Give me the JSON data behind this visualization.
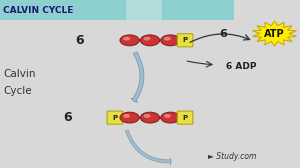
{
  "title": "CALVIN CYCLE",
  "title_bar_color": "#8ecfcf",
  "title_text_color": "#1a1a6e",
  "bg_color": "#d8d8d8",
  "ball_color": "#cc3333",
  "ball_edge_color": "#882222",
  "p_box_color": "#e8e040",
  "atp_color": "#ffee00",
  "atp_edge_color": "#ccaa00",
  "atp_text": "ATP",
  "adp_text": "6 ADP",
  "arrow_color": "#a0bece",
  "arrow_edge_color": "#7090ae",
  "six_top": "6",
  "six_bot": "6",
  "six_atp": "6",
  "label_calvin1": "alvin",
  "label_calvin2": "Cycle",
  "watermark_symbol": "►",
  "watermark_text": "Study.com"
}
